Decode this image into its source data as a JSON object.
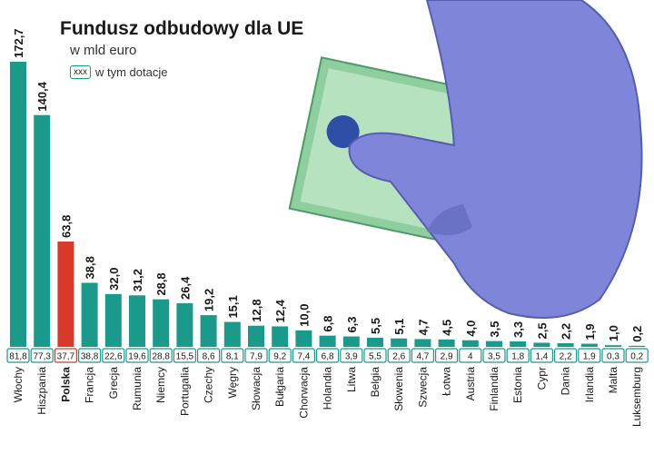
{
  "header": {
    "title": "Fundusz odbudowy dla UE",
    "subtitle": "w mld euro",
    "legend_swatch": "xxx",
    "legend_text": "w tym dotacje"
  },
  "illustration": {
    "description_icon": "gloved-hand-holding-euro-banknote-icon"
  },
  "colors": {
    "teal": "#1a9a8a",
    "highlight": "#d8392b",
    "text": "#1a1a1a"
  },
  "chart_data": {
    "type": "bar",
    "title": "Fundusz odbudowy dla UE",
    "subtitle": "w mld euro",
    "legend": [
      "w tym dotacje"
    ],
    "highlight_category": "Polska",
    "categories": [
      "Włochy",
      "Hiszpania",
      "Polska",
      "Francja",
      "Grecja",
      "Rumunia",
      "Niemcy",
      "Portugalia",
      "Czechy",
      "Węgry",
      "Słowacja",
      "Bułgaria",
      "Chorwacja",
      "Holandia",
      "Litwa",
      "Belgia",
      "Słowenia",
      "Szwecja",
      "Łotwa",
      "Austria",
      "Finlandia",
      "Estonia",
      "Cypr",
      "Dania",
      "Irlandia",
      "Malta",
      "Luksemburg"
    ],
    "series": [
      {
        "values": [
          172.7,
          140.4,
          63.8,
          38.8,
          32.0,
          31.2,
          28.8,
          26.4,
          19.2,
          15.1,
          12.8,
          12.4,
          10.0,
          6.8,
          6.3,
          5.5,
          5.1,
          4.7,
          4.5,
          4.0,
          3.5,
          3.3,
          2.5,
          2.2,
          1.9,
          1.0,
          0.2
        ],
        "labels": [
          "172,7",
          "140,4",
          "63,8",
          "38,8",
          "32,0",
          "31,2",
          "28,8",
          "26,4",
          "19,2",
          "15,1",
          "12,8",
          "12,4",
          "10,0",
          "6,8",
          "6,3",
          "5,5",
          "5,1",
          "4,7",
          "4,5",
          "4,0",
          "3,5",
          "3,3",
          "2,5",
          "2,2",
          "1,9",
          "1,0",
          "0,2"
        ]
      },
      {
        "name": "w tym dotacje",
        "values": [
          81.8,
          77.3,
          37.7,
          38.8,
          22.6,
          19.6,
          28.8,
          15.5,
          8.6,
          8.1,
          7.9,
          9.2,
          7.4,
          6.8,
          3.9,
          5.5,
          2.6,
          4.7,
          2.9,
          4,
          3.5,
          1.8,
          1.4,
          2.2,
          1.9,
          0.3,
          0.2
        ],
        "labels": [
          "81,8",
          "77,3",
          "37,7",
          "38,8",
          "22,6",
          "19,6",
          "28,8",
          "15,5",
          "8,6",
          "8,1",
          "7,9",
          "9,2",
          "7,4",
          "6,8",
          "3,9",
          "5,5",
          "2,6",
          "4,7",
          "2,9",
          "4",
          "3,5",
          "1,8",
          "1,4",
          "2,2",
          "1,9",
          "0,3",
          "0,2"
        ]
      }
    ],
    "ylim": [
      0,
      172.7
    ],
    "xlabel": "",
    "ylabel": "",
    "grid": false
  }
}
